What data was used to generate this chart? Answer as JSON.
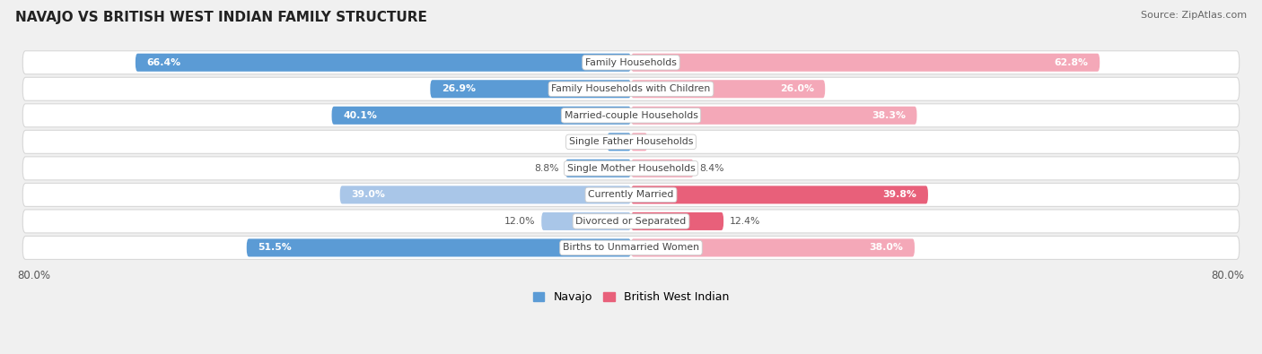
{
  "title": "NAVAJO VS BRITISH WEST INDIAN FAMILY STRUCTURE",
  "source": "Source: ZipAtlas.com",
  "categories": [
    "Family Households",
    "Family Households with Children",
    "Married-couple Households",
    "Single Father Households",
    "Single Mother Households",
    "Currently Married",
    "Divorced or Separated",
    "Births to Unmarried Women"
  ],
  "navajo_values": [
    66.4,
    26.9,
    40.1,
    3.2,
    8.8,
    39.0,
    12.0,
    51.5
  ],
  "bwi_values": [
    62.8,
    26.0,
    38.3,
    2.2,
    8.4,
    39.8,
    12.4,
    38.0
  ],
  "navajo_color_strong": "#5B9BD5",
  "navajo_color_light": "#A9C6E8",
  "bwi_color_strong": "#E8607A",
  "bwi_color_light": "#F4A8B8",
  "axis_max": 80.0,
  "background_color": "#f0f0f0",
  "row_bg_color": "#ffffff",
  "row_border_color": "#d8d8d8",
  "legend_navajo": "Navajo",
  "legend_bwi": "British West Indian",
  "label_inside_color": "#ffffff",
  "label_outside_color": "#555555",
  "category_label_color": "#444444",
  "inside_threshold": 15.0
}
